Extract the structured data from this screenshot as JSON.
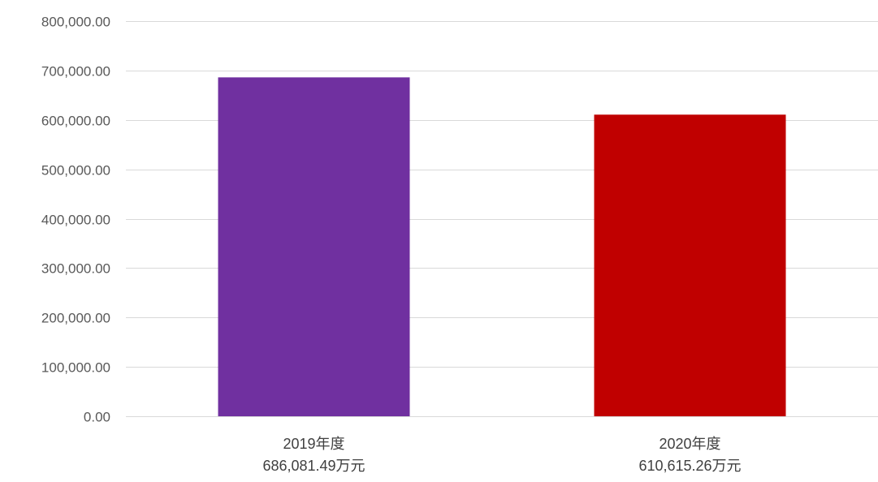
{
  "chart_data": {
    "type": "bar",
    "title": "",
    "xlabel": "",
    "ylabel": "",
    "categories": [
      "2019年度",
      "2020年度"
    ],
    "category_sublabels": [
      "686,081.49万元",
      "610,615.26万元"
    ],
    "values": [
      686081.49,
      610615.26
    ],
    "bar_colors": [
      "#7030a0",
      "#c00000"
    ],
    "ylim": [
      0,
      800000
    ],
    "yticks": [
      0,
      100000,
      200000,
      300000,
      400000,
      500000,
      600000,
      700000,
      800000
    ],
    "ytick_labels": [
      "0.00",
      "100,000.00",
      "200,000.00",
      "300,000.00",
      "400,000.00",
      "500,000.00",
      "600,000.00",
      "700,000.00",
      "800,000.00"
    ],
    "grid": true,
    "legend": "none"
  }
}
